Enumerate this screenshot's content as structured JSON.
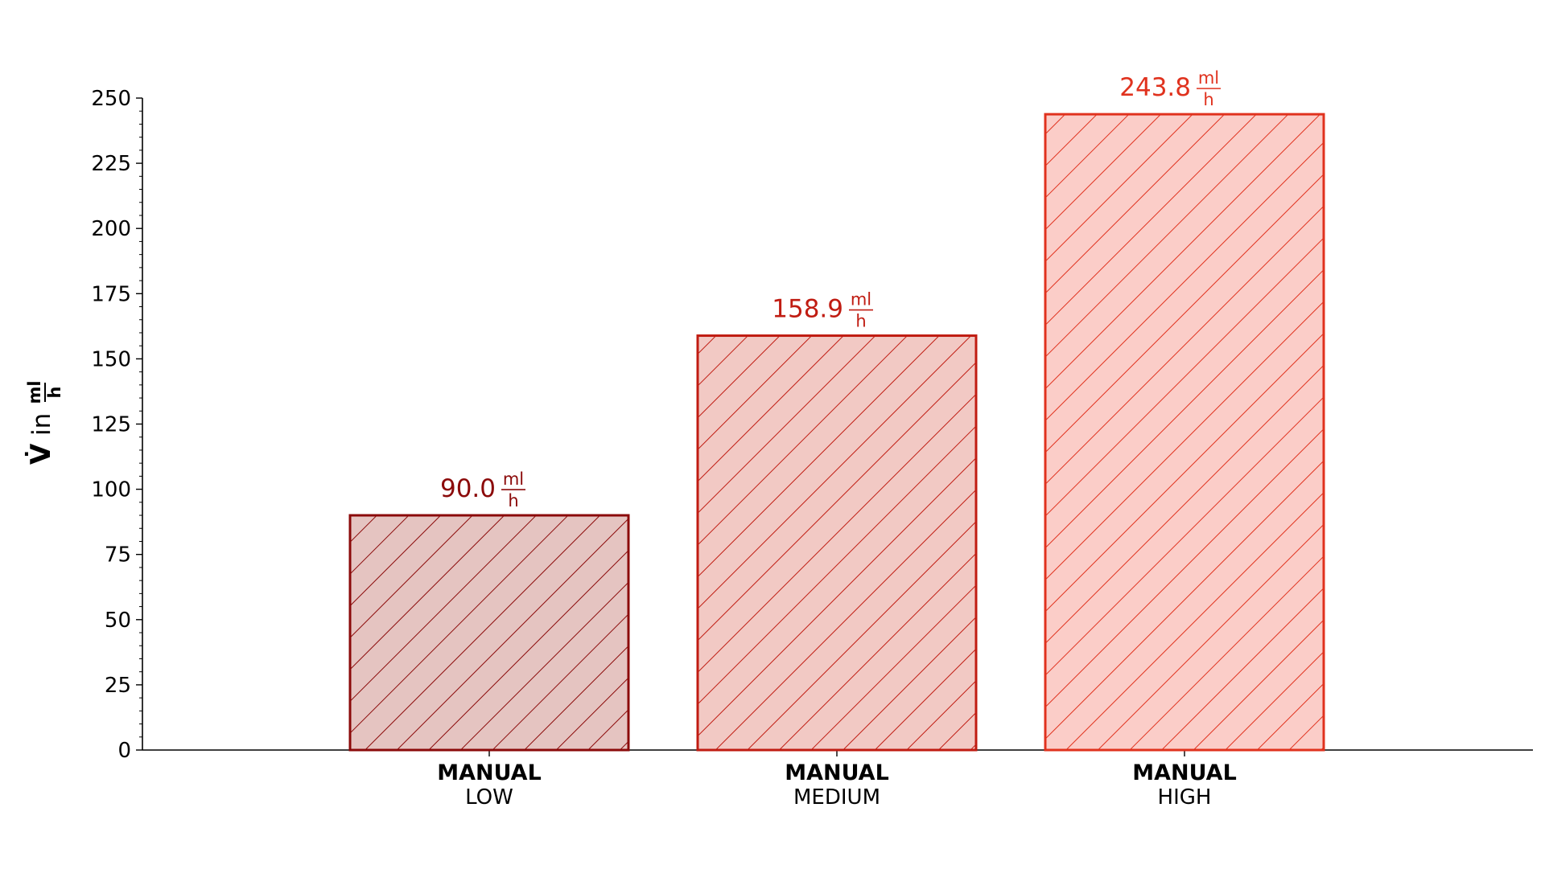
{
  "chart_data": {
    "type": "bar",
    "categories": [
      {
        "main": "MANUAL",
        "sub": "LOW"
      },
      {
        "main": "MANUAL",
        "sub": "MEDIUM"
      },
      {
        "main": "MANUAL",
        "sub": "HIGH"
      }
    ],
    "values": [
      90.0,
      158.9,
      243.8
    ],
    "value_labels": [
      "90.0",
      "158.9",
      "243.8"
    ],
    "value_unit": {
      "numerator": "ml",
      "denominator": "h"
    },
    "ylabel": {
      "symbol": "V̇",
      "connector": "in",
      "unit_numerator": "ml",
      "unit_denominator": "h"
    },
    "ylim": [
      0,
      250
    ],
    "yticks": [
      "0",
      "25",
      "50",
      "75",
      "100",
      "125",
      "150",
      "175",
      "200",
      "225",
      "250"
    ],
    "grid": false,
    "hatch": "diagonal",
    "colors": {
      "edges": [
        "#8b0a0a",
        "#c01c12",
        "#e0321e"
      ],
      "fills": [
        "#e5c4c1",
        "#f2c9c4",
        "#fbcdc8"
      ],
      "labels": [
        "#8b0a0a",
        "#c01c12",
        "#e0321e"
      ]
    }
  }
}
